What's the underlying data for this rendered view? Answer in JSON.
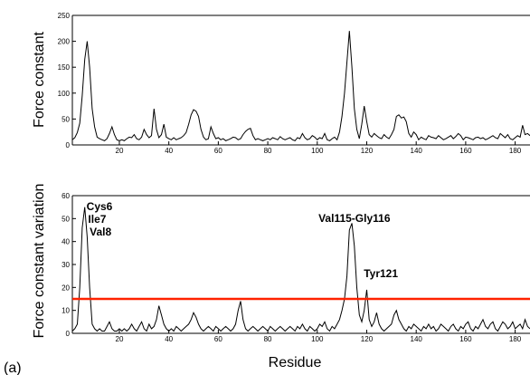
{
  "figure": {
    "panel_tag": "(a)",
    "xlabel": "Residue"
  },
  "chart_data": [
    {
      "type": "line",
      "title": "",
      "xlabel": "",
      "ylabel": "Force constant",
      "xlim": [
        1,
        186
      ],
      "ylim": [
        0,
        250
      ],
      "xticks": [
        20,
        40,
        60,
        80,
        100,
        120,
        140,
        160,
        180
      ],
      "yticks": [
        0,
        50,
        100,
        150,
        200,
        250
      ],
      "grid": false,
      "color": "#000000",
      "series": [
        {
          "x": [
            1,
            2,
            3,
            4,
            5,
            6,
            7,
            8,
            9,
            10,
            11,
            12,
            13,
            14,
            15,
            16,
            17,
            18,
            19,
            20,
            21,
            22,
            23,
            24,
            25,
            26,
            27,
            28,
            29,
            30,
            31,
            32,
            33,
            34,
            35,
            36,
            37,
            38,
            39,
            40,
            41,
            42,
            43,
            44,
            45,
            46,
            47,
            48,
            49,
            50,
            51,
            52,
            53,
            54,
            55,
            56,
            57,
            58,
            59,
            60,
            61,
            62,
            63,
            64,
            65,
            66,
            67,
            68,
            69,
            70,
            71,
            72,
            73,
            74,
            75,
            76,
            77,
            78,
            79,
            80,
            81,
            82,
            83,
            84,
            85,
            86,
            87,
            88,
            89,
            90,
            91,
            92,
            93,
            94,
            95,
            96,
            97,
            98,
            99,
            100,
            101,
            102,
            103,
            104,
            105,
            106,
            107,
            108,
            109,
            110,
            111,
            112,
            113,
            114,
            115,
            116,
            117,
            118,
            119,
            120,
            121,
            122,
            123,
            124,
            125,
            126,
            127,
            128,
            129,
            130,
            131,
            132,
            133,
            134,
            135,
            136,
            137,
            138,
            139,
            140,
            141,
            142,
            143,
            144,
            145,
            146,
            147,
            148,
            149,
            150,
            151,
            152,
            153,
            154,
            155,
            156,
            157,
            158,
            159,
            160,
            161,
            162,
            163,
            164,
            165,
            166,
            167,
            168,
            169,
            170,
            171,
            172,
            173,
            174,
            175,
            176,
            177,
            178,
            179,
            180,
            181,
            182,
            183,
            184,
            185,
            186
          ],
          "y": [
            10,
            14,
            24,
            42,
            95,
            165,
            200,
            150,
            70,
            35,
            15,
            12,
            10,
            8,
            12,
            22,
            35,
            20,
            10,
            8,
            10,
            8,
            12,
            15,
            14,
            20,
            12,
            10,
            15,
            30,
            20,
            14,
            18,
            70,
            30,
            14,
            20,
            40,
            15,
            12,
            10,
            14,
            10,
            12,
            14,
            18,
            24,
            40,
            58,
            68,
            65,
            55,
            30,
            15,
            10,
            12,
            35,
            22,
            12,
            14,
            10,
            12,
            8,
            10,
            12,
            15,
            14,
            10,
            12,
            20,
            26,
            30,
            32,
            18,
            10,
            12,
            10,
            8,
            10,
            12,
            10,
            14,
            12,
            10,
            16,
            12,
            10,
            12,
            14,
            10,
            8,
            14,
            12,
            22,
            14,
            10,
            12,
            18,
            15,
            10,
            14,
            12,
            22,
            10,
            8,
            12,
            15,
            10,
            25,
            55,
            100,
            160,
            220,
            150,
            70,
            30,
            12,
            40,
            75,
            45,
            20,
            15,
            22,
            18,
            14,
            12,
            20,
            15,
            12,
            20,
            30,
            55,
            58,
            52,
            54,
            45,
            22,
            15,
            25,
            20,
            10,
            15,
            12,
            10,
            18,
            15,
            14,
            12,
            18,
            14,
            10,
            12,
            15,
            18,
            12,
            16,
            22,
            18,
            10,
            15,
            14,
            12,
            10,
            14,
            15,
            12,
            14,
            10,
            12,
            15,
            18,
            14,
            12,
            22,
            18,
            14,
            20,
            12,
            10,
            14,
            18,
            15,
            38,
            20,
            22,
            18
          ]
        }
      ]
    },
    {
      "type": "line",
      "title": "",
      "xlabel": "Residue",
      "ylabel": "Force constant variation",
      "xlim": [
        1,
        186
      ],
      "ylim": [
        0,
        60
      ],
      "xticks": [
        20,
        40,
        60,
        80,
        100,
        120,
        140,
        160,
        180
      ],
      "yticks": [
        0,
        10,
        20,
        30,
        40,
        50,
        60
      ],
      "grid": false,
      "color": "#000000",
      "threshold": {
        "y": 15,
        "color": "#ff2200"
      },
      "annotations": [
        {
          "text": "Cys6",
          "x": 6,
          "y": 55
        },
        {
          "text": "Ile7",
          "x": 7,
          "y": 55
        },
        {
          "text": "Val8",
          "x": 8,
          "y": 55
        },
        {
          "text": "Val115-Gly116",
          "x": 115,
          "y": 48
        },
        {
          "text": "Tyr121",
          "x": 121,
          "y": 19
        }
      ],
      "series": [
        {
          "x": [
            1,
            2,
            3,
            4,
            5,
            6,
            7,
            8,
            9,
            10,
            11,
            12,
            13,
            14,
            15,
            16,
            17,
            18,
            19,
            20,
            21,
            22,
            23,
            24,
            25,
            26,
            27,
            28,
            29,
            30,
            31,
            32,
            33,
            34,
            35,
            36,
            37,
            38,
            39,
            40,
            41,
            42,
            43,
            44,
            45,
            46,
            47,
            48,
            49,
            50,
            51,
            52,
            53,
            54,
            55,
            56,
            57,
            58,
            59,
            60,
            61,
            62,
            63,
            64,
            65,
            66,
            67,
            68,
            69,
            70,
            71,
            72,
            73,
            74,
            75,
            76,
            77,
            78,
            79,
            80,
            81,
            82,
            83,
            84,
            85,
            86,
            87,
            88,
            89,
            90,
            91,
            92,
            93,
            94,
            95,
            96,
            97,
            98,
            99,
            100,
            101,
            102,
            103,
            104,
            105,
            106,
            107,
            108,
            109,
            110,
            111,
            112,
            113,
            114,
            115,
            116,
            117,
            118,
            119,
            120,
            121,
            122,
            123,
            124,
            125,
            126,
            127,
            128,
            129,
            130,
            131,
            132,
            133,
            134,
            135,
            136,
            137,
            138,
            139,
            140,
            141,
            142,
            143,
            144,
            145,
            146,
            147,
            148,
            149,
            150,
            151,
            152,
            153,
            154,
            155,
            156,
            157,
            158,
            159,
            160,
            161,
            162,
            163,
            164,
            165,
            166,
            167,
            168,
            169,
            170,
            171,
            172,
            173,
            174,
            175,
            176,
            177,
            178,
            179,
            180,
            181,
            182,
            183,
            184,
            185,
            186
          ],
          "y": [
            1,
            2,
            4,
            20,
            46,
            55,
            42,
            20,
            4,
            2,
            1,
            2,
            1,
            1,
            3,
            5,
            2,
            1,
            1,
            2,
            1,
            2,
            1,
            2,
            4,
            2,
            1,
            3,
            5,
            2,
            1,
            4,
            2,
            3,
            6,
            12,
            8,
            4,
            2,
            1,
            2,
            1,
            3,
            2,
            1,
            2,
            3,
            4,
            6,
            9,
            7,
            4,
            2,
            1,
            2,
            3,
            2,
            1,
            3,
            2,
            1,
            2,
            3,
            2,
            1,
            2,
            4,
            10,
            14,
            6,
            2,
            1,
            2,
            3,
            2,
            1,
            2,
            3,
            2,
            1,
            3,
            2,
            1,
            2,
            3,
            2,
            1,
            2,
            3,
            2,
            1,
            3,
            2,
            4,
            2,
            1,
            3,
            2,
            1,
            2,
            4,
            3,
            5,
            2,
            1,
            3,
            2,
            4,
            6,
            10,
            15,
            25,
            45,
            48,
            38,
            20,
            8,
            5,
            10,
            19,
            6,
            3,
            5,
            9,
            4,
            2,
            1,
            2,
            3,
            4,
            8,
            10,
            6,
            4,
            2,
            1,
            3,
            2,
            4,
            3,
            2,
            1,
            3,
            2,
            4,
            2,
            3,
            1,
            2,
            4,
            3,
            2,
            1,
            3,
            4,
            2,
            1,
            3,
            2,
            4,
            5,
            2,
            1,
            3,
            2,
            4,
            6,
            3,
            2,
            4,
            5,
            2,
            1,
            3,
            5,
            4,
            2,
            3,
            5,
            2,
            3,
            4,
            2,
            6,
            3,
            2
          ]
        }
      ]
    }
  ]
}
